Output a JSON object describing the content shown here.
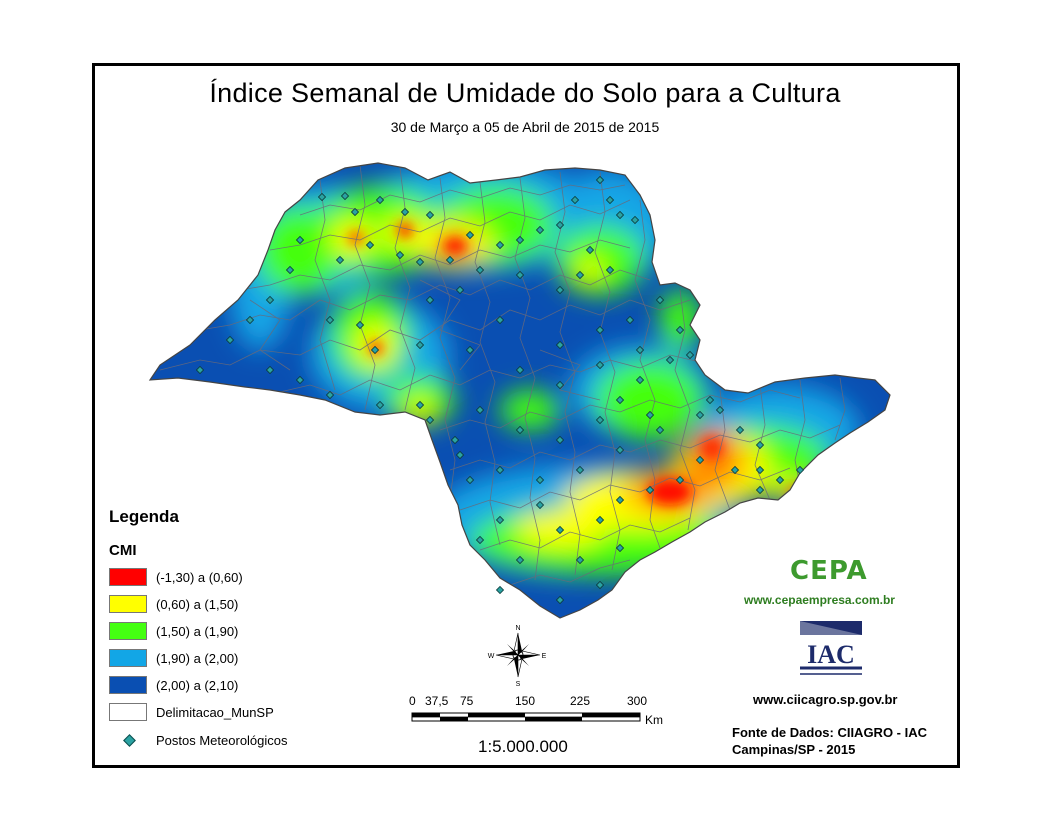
{
  "title": "Índice Semanal de Umidade do Solo para a Cultura",
  "subtitle": "30 de Março a 05 de Abril de 2015 de 2015",
  "legend": {
    "title": "Legenda",
    "sub_title": "CMI",
    "classes": [
      {
        "label": "(-1,30) a (0,60)",
        "color": "#ff0000"
      },
      {
        "label": "(0,60) a (1,50)",
        "color": "#ffff00"
      },
      {
        "label": "(1,50) a (1,90)",
        "color": "#44ff11"
      },
      {
        "label": "(1,90) a (2,00)",
        "color": "#12a6e6"
      },
      {
        "label": "(2,00) a (2,10)",
        "color": "#0a4fb2"
      }
    ],
    "boundary_label": "Delimitacao_MunSP",
    "stations_label": "Postos Meteorológicos"
  },
  "north_arrow": {
    "n": "N",
    "s": "S",
    "e": "E",
    "w": "W"
  },
  "scale_bar": {
    "ticks": [
      "0",
      "37,5",
      "75",
      "150",
      "225",
      "300"
    ],
    "unit": "Km",
    "ratio": "1:5.000.000"
  },
  "logos": {
    "cepa_text": "CEPA",
    "cepa_url": "www.cepaempresa.com.br",
    "iac_text": "IAC",
    "ciiagro_url": "www.ciicagro.sp.gov.br"
  },
  "source": {
    "line1": "Fonte de Dados: CIIAGRO - IAC",
    "line2": "Campinas/SP - 2015"
  }
}
